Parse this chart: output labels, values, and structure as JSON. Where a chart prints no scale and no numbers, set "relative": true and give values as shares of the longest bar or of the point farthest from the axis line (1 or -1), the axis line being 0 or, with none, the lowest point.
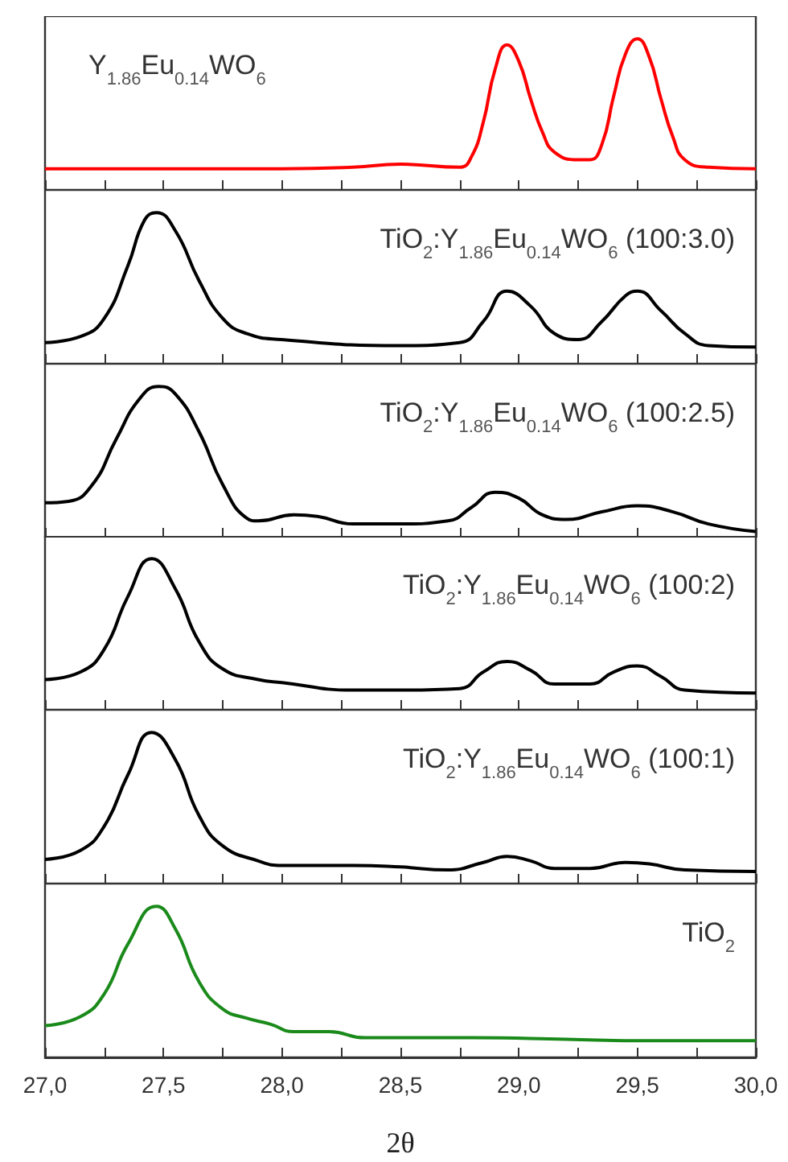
{
  "chart_data": [
    {
      "type": "line",
      "title": "Y$_{1.86}$Eu$_{0.14}$WO$_{6}$",
      "relative": true,
      "tick_labels": false,
      "xlim": [
        27,
        30
      ],
      "xticks": [
        {
          "value": 27,
          "label": null
        },
        {
          "value": 27.25,
          "label": null
        },
        {
          "value": 27.5,
          "label": null
        },
        {
          "value": 27.75,
          "label": null
        },
        {
          "value": 28,
          "label": null
        },
        {
          "value": 28.25,
          "label": null
        },
        {
          "value": 28.5,
          "label": null
        },
        {
          "value": 28.75,
          "label": null
        },
        {
          "value": 29,
          "label": null
        },
        {
          "value": 29.25,
          "label": null
        },
        {
          "value": 29.5,
          "label": null
        },
        {
          "value": 29.75,
          "label": null
        },
        {
          "value": 30,
          "label": null
        }
      ],
      "x": [
        27.0,
        27.5,
        28.0,
        28.3,
        28.5,
        28.75,
        28.8,
        28.85,
        28.9,
        28.95,
        29.0,
        29.05,
        29.1,
        29.15,
        29.25,
        29.3,
        29.35,
        29.4,
        29.45,
        29.5,
        29.55,
        29.6,
        29.65,
        29.7,
        29.8,
        30.0
      ],
      "series": [
        {
          "color": "#ff0000",
          "values": [
            0.14,
            0.14,
            0.14,
            0.15,
            0.17,
            0.15,
            0.22,
            0.45,
            0.8,
            0.96,
            0.85,
            0.6,
            0.38,
            0.25,
            0.2,
            0.2,
            0.3,
            0.62,
            0.9,
            1.0,
            0.88,
            0.6,
            0.35,
            0.2,
            0.15,
            0.14
          ]
        }
      ]
    },
    {
      "type": "line",
      "title": "TiO$_{2}$:Y$_{1.86}$Eu$_{0.14}$WO$_{6}$ (100:3.0)",
      "relative": true,
      "tick_labels": false,
      "xlim": [
        27,
        30
      ],
      "xticks": [
        {
          "value": 27,
          "label": null
        },
        {
          "value": 27.25,
          "label": null
        },
        {
          "value": 27.5,
          "label": null
        },
        {
          "value": 27.75,
          "label": null
        },
        {
          "value": 28,
          "label": null
        },
        {
          "value": 28.25,
          "label": null
        },
        {
          "value": 28.5,
          "label": null
        },
        {
          "value": 28.75,
          "label": null
        },
        {
          "value": 29,
          "label": null
        },
        {
          "value": 29.25,
          "label": null
        },
        {
          "value": 29.5,
          "label": null
        },
        {
          "value": 29.75,
          "label": null
        },
        {
          "value": 30,
          "label": null
        }
      ],
      "x": [
        27.0,
        27.15,
        27.25,
        27.35,
        27.42,
        27.47,
        27.55,
        27.65,
        27.75,
        27.85,
        28.0,
        28.5,
        28.75,
        28.85,
        28.95,
        29.05,
        29.15,
        29.25,
        29.35,
        29.45,
        29.5,
        29.6,
        29.7,
        29.8,
        30.0
      ],
      "series": [
        {
          "color": "#000000",
          "values": [
            0.14,
            0.18,
            0.3,
            0.65,
            0.95,
            1.0,
            0.88,
            0.55,
            0.3,
            0.2,
            0.16,
            0.12,
            0.14,
            0.28,
            0.48,
            0.38,
            0.2,
            0.16,
            0.28,
            0.45,
            0.48,
            0.35,
            0.2,
            0.12,
            0.11
          ]
        }
      ]
    },
    {
      "type": "line",
      "title": "TiO$_{2}$:Y$_{1.86}$Eu$_{0.14}$WO$_{6}$ (100:2.5)",
      "relative": true,
      "tick_labels": false,
      "xlim": [
        27,
        30
      ],
      "xticks": [
        {
          "value": 27,
          "label": null
        },
        {
          "value": 27.25,
          "label": null
        },
        {
          "value": 27.5,
          "label": null
        },
        {
          "value": 27.75,
          "label": null
        },
        {
          "value": 28,
          "label": null
        },
        {
          "value": 28.25,
          "label": null
        },
        {
          "value": 28.5,
          "label": null
        },
        {
          "value": 28.75,
          "label": null
        },
        {
          "value": 29,
          "label": null
        },
        {
          "value": 29.25,
          "label": null
        },
        {
          "value": 29.5,
          "label": null
        },
        {
          "value": 29.75,
          "label": null
        },
        {
          "value": 30,
          "label": null
        }
      ],
      "x": [
        27.0,
        27.1,
        27.2,
        27.3,
        27.4,
        27.48,
        27.55,
        27.65,
        27.75,
        27.85,
        27.9,
        28.05,
        28.15,
        28.3,
        28.5,
        28.7,
        28.8,
        28.9,
        29.0,
        29.1,
        29.2,
        29.35,
        29.5,
        29.65,
        29.8,
        30.0
      ],
      "series": [
        {
          "color": "#000000",
          "values": [
            0.23,
            0.24,
            0.35,
            0.65,
            0.92,
            1.0,
            0.95,
            0.7,
            0.35,
            0.13,
            0.11,
            0.15,
            0.14,
            0.09,
            0.09,
            0.11,
            0.2,
            0.3,
            0.26,
            0.15,
            0.12,
            0.17,
            0.21,
            0.17,
            0.09,
            0.04
          ]
        }
      ]
    },
    {
      "type": "line",
      "title": "TiO$_{2}$:Y$_{1.86}$Eu$_{0.14}$WO$_{6}$ (100:2)",
      "relative": true,
      "tick_labels": false,
      "xlim": [
        27,
        30
      ],
      "xticks": [
        {
          "value": 27,
          "label": null
        },
        {
          "value": 27.25,
          "label": null
        },
        {
          "value": 27.5,
          "label": null
        },
        {
          "value": 27.75,
          "label": null
        },
        {
          "value": 28,
          "label": null
        },
        {
          "value": 28.25,
          "label": null
        },
        {
          "value": 28.5,
          "label": null
        },
        {
          "value": 28.75,
          "label": null
        },
        {
          "value": 29,
          "label": null
        },
        {
          "value": 29.25,
          "label": null
        },
        {
          "value": 29.5,
          "label": null
        },
        {
          "value": 29.75,
          "label": null
        },
        {
          "value": 30,
          "label": null
        }
      ],
      "x": [
        27.0,
        27.15,
        27.25,
        27.35,
        27.45,
        27.55,
        27.65,
        27.75,
        27.9,
        28.0,
        28.3,
        28.5,
        28.75,
        28.85,
        28.95,
        29.05,
        29.15,
        29.3,
        29.4,
        29.5,
        29.6,
        29.7,
        30.0
      ],
      "series": [
        {
          "color": "#000000",
          "values": [
            0.2,
            0.25,
            0.4,
            0.75,
            1.0,
            0.8,
            0.45,
            0.27,
            0.2,
            0.18,
            0.13,
            0.13,
            0.14,
            0.25,
            0.32,
            0.26,
            0.17,
            0.17,
            0.25,
            0.29,
            0.22,
            0.13,
            0.11
          ]
        }
      ]
    },
    {
      "type": "line",
      "title": "TiO$_{2}$:Y$_{1.86}$Eu$_{0.14}$WO$_{6}$ (100:1)",
      "relative": true,
      "tick_labels": false,
      "xlim": [
        27,
        30
      ],
      "xticks": [
        {
          "value": 27,
          "label": null
        },
        {
          "value": 27.25,
          "label": null
        },
        {
          "value": 27.5,
          "label": null
        },
        {
          "value": 27.75,
          "label": null
        },
        {
          "value": 28,
          "label": null
        },
        {
          "value": 28.25,
          "label": null
        },
        {
          "value": 28.5,
          "label": null
        },
        {
          "value": 28.75,
          "label": null
        },
        {
          "value": 29,
          "label": null
        },
        {
          "value": 29.25,
          "label": null
        },
        {
          "value": 29.5,
          "label": null
        },
        {
          "value": 29.75,
          "label": null
        },
        {
          "value": 30,
          "label": null
        }
      ],
      "x": [
        27.0,
        27.15,
        27.25,
        27.35,
        27.45,
        27.55,
        27.65,
        27.75,
        27.9,
        28.0,
        28.3,
        28.5,
        28.7,
        28.85,
        28.95,
        29.05,
        29.15,
        29.3,
        29.45,
        29.55,
        29.7,
        30.0
      ],
      "series": [
        {
          "color": "#000000",
          "values": [
            0.16,
            0.22,
            0.38,
            0.72,
            1.0,
            0.82,
            0.45,
            0.25,
            0.15,
            0.12,
            0.12,
            0.11,
            0.09,
            0.14,
            0.18,
            0.15,
            0.1,
            0.1,
            0.14,
            0.13,
            0.09,
            0.08
          ]
        }
      ]
    },
    {
      "type": "line",
      "title": "TiO$_{2}$",
      "xlabel": "2θ",
      "relative": true,
      "tick_labels": "x",
      "xlim": [
        27,
        30
      ],
      "xticks": [
        {
          "value": 27,
          "label": "27,0"
        },
        {
          "value": 27.25,
          "label": null
        },
        {
          "value": 27.5,
          "label": "27,5"
        },
        {
          "value": 27.75,
          "label": null
        },
        {
          "value": 28,
          "label": "28,0"
        },
        {
          "value": 28.25,
          "label": null
        },
        {
          "value": 28.5,
          "label": "28,5"
        },
        {
          "value": 28.75,
          "label": null
        },
        {
          "value": 29,
          "label": "29,0"
        },
        {
          "value": 29.25,
          "label": null
        },
        {
          "value": 29.5,
          "label": "29,5"
        },
        {
          "value": 29.75,
          "label": null
        },
        {
          "value": 30,
          "label": "30,0"
        }
      ],
      "x": [
        27.0,
        27.15,
        27.25,
        27.35,
        27.47,
        27.55,
        27.65,
        27.75,
        27.85,
        27.95,
        28.05,
        28.2,
        28.35,
        28.5,
        28.8,
        29.2,
        29.5,
        30.0
      ],
      "series": [
        {
          "color": "#1a8a1a",
          "values": [
            0.21,
            0.27,
            0.42,
            0.75,
            1.0,
            0.85,
            0.5,
            0.32,
            0.26,
            0.22,
            0.17,
            0.17,
            0.13,
            0.13,
            0.13,
            0.12,
            0.11,
            0.11
          ]
        }
      ]
    }
  ]
}
